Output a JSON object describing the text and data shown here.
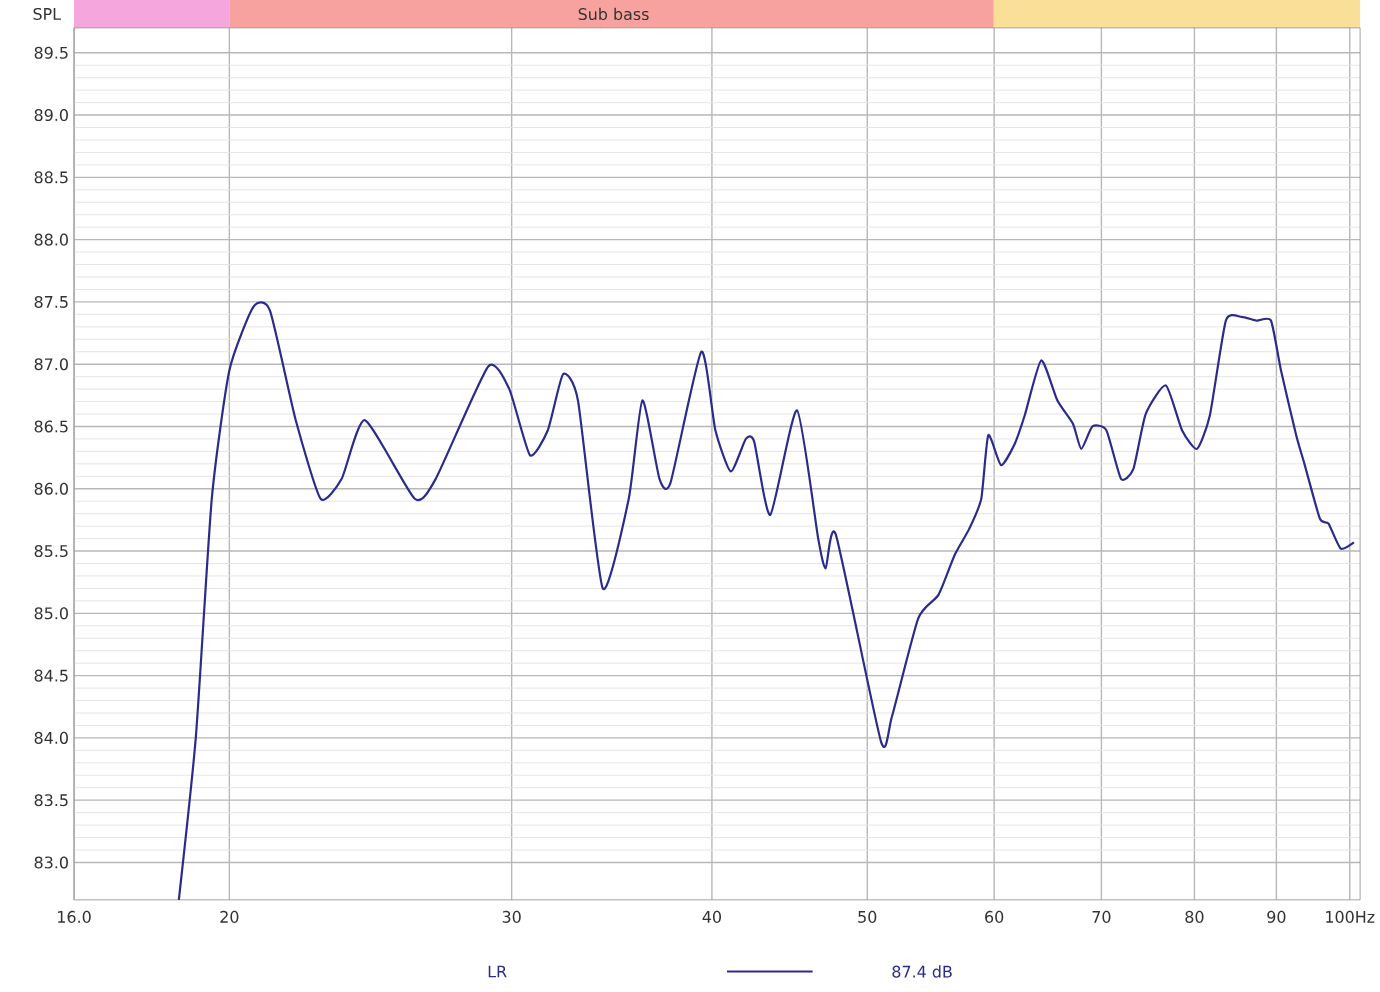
{
  "chart_data": {
    "type": "line",
    "ylabel": "SPL",
    "log": "x",
    "grid": true,
    "legend": "bottom",
    "marker": "none",
    "line_style": "solid",
    "xlim": [
      16,
      101.5
    ],
    "ylim": [
      82.7,
      89.7
    ],
    "xticks": [
      {
        "value": 16,
        "label": "16.0"
      },
      20,
      30,
      40,
      50,
      60,
      70,
      80,
      90,
      {
        "value": 100,
        "label": "100Hz"
      }
    ],
    "yticks": [
      {
        "value": 83,
        "label": "83.0"
      },
      83.5,
      {
        "value": 84,
        "label": "84.0"
      },
      84.5,
      {
        "value": 85,
        "label": "85.0"
      },
      85.5,
      {
        "value": 86,
        "label": "86.0"
      },
      86.5,
      {
        "value": 87,
        "label": "87.0"
      },
      87.5,
      {
        "value": 88,
        "label": "88.0"
      },
      88.5,
      {
        "value": 89,
        "label": "89.0"
      },
      89.5
    ],
    "annotations": [
      "Sub bass",
      "87.4 dB"
    ],
    "series": [
      {
        "name": "LR",
        "color": "#2b2b8c",
        "x": [
          18.6,
          19.06,
          19.5,
          20,
          20.7,
          21.2,
          22.0,
          22.8,
          23.5,
          24.3,
          26.1,
          26.9,
          29.0,
          29.9,
          30.8,
          31.6,
          32.3,
          33.0,
          34.2,
          35.5,
          36.2,
          37.1,
          37.7,
          39.4,
          40.2,
          41.1,
          42.0,
          42.5,
          43.5,
          45.2,
          46.6,
          47.1,
          47.8,
          51.0,
          51.8,
          53.8,
          55.4,
          56.7,
          57.9,
          58.9,
          59.5,
          60.6,
          61.8,
          62.7,
          64.2,
          65.7,
          67.2,
          68.0,
          69.1,
          70.5,
          72.0,
          73.3,
          74.6,
          76.8,
          78.6,
          80.3,
          81.8,
          83.7,
          85.6,
          87.5,
          89.3,
          90.6,
          92.6,
          93.7,
          95.8,
          97.0,
          98.7,
          100.6
        ],
        "values": [
          82.7,
          84.01,
          85.92,
          86.95,
          87.46,
          87.43,
          86.55,
          85.92,
          86.08,
          86.55,
          85.92,
          86.08,
          86.98,
          86.8,
          86.27,
          86.47,
          86.92,
          86.71,
          85.2,
          85.92,
          86.71,
          86.08,
          86.05,
          87.1,
          86.47,
          86.14,
          86.4,
          86.38,
          85.79,
          86.63,
          85.6,
          85.36,
          85.63,
          83.97,
          84.17,
          84.96,
          85.15,
          85.47,
          85.68,
          85.92,
          86.43,
          86.19,
          86.36,
          86.59,
          87.03,
          86.71,
          86.52,
          86.32,
          86.5,
          86.47,
          86.08,
          86.16,
          86.6,
          86.83,
          86.47,
          86.32,
          86.59,
          87.35,
          87.38,
          87.35,
          87.35,
          86.95,
          86.43,
          86.2,
          85.76,
          85.72,
          85.52,
          85.57
        ]
      }
    ]
  }
}
